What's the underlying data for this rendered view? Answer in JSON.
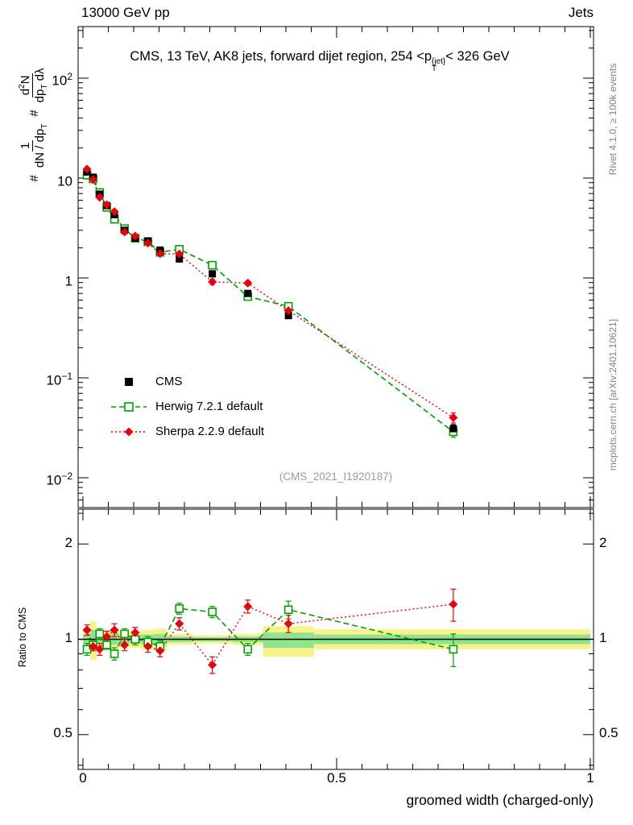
{
  "header": {
    "left": "13000 GeV pp",
    "right": "Jets"
  },
  "title": {
    "part1": "CMS, 13 TeV, AK8 jets, forward dijet region, 254 <p",
    "sup": "{jet}",
    "sub": "T",
    "part2": "< 326 GeV"
  },
  "ylabel": {
    "hash1": "#",
    "frac1": {
      "num": "1",
      "den_a": "dN / dp",
      "den_sub": "T"
    },
    "hash2": "#",
    "frac2": {
      "num_a": "d",
      "num_sup": "2",
      "num_b": "N",
      "den_a": "dp",
      "den_sub": "T",
      "den_b": " dλ"
    }
  },
  "right_labels": {
    "top": "Rivet 4.1.0, ≥ 100k events",
    "bottom": "mcplots.cern.ch [arXiv:2401.10621]"
  },
  "watermark": "(CMS_2021_I1920187)",
  "ratio_ylabel": "Ratio to CMS",
  "main_yticks": [
    {
      "base": "10",
      "exp": "2"
    },
    {
      "base": "10",
      "exp": ""
    },
    {
      "base": "1",
      "exp": ""
    },
    {
      "base": "10",
      "exp": "−1"
    },
    {
      "base": "10",
      "exp": "−2"
    }
  ],
  "ratio_yticks": [
    "2",
    "1",
    "0.5"
  ],
  "xaxis": {
    "title": "groomed width (charged-only)",
    "ticks": [
      "0",
      "0.5",
      "1"
    ]
  },
  "legend": [
    {
      "label": "CMS"
    },
    {
      "label": "Herwig 7.2.1 default"
    },
    {
      "label": "Sherpa 2.2.9 default"
    }
  ],
  "colors": {
    "cms": "#000000",
    "herwig": "#00a000",
    "sherpa": "#e8000d",
    "band_yellow": "#f9f28a",
    "band_green": "#8ee58e",
    "gray_text": "#828282"
  },
  "chart_data": {
    "type": "line",
    "title": "CMS, 13 TeV, AK8 jets, forward dijet region, 254 <pT^{jet}< 326 GeV",
    "xlabel": "groomed width (charged-only)",
    "ylabel": "1/(dN/dpT) d2N/(dpT dlambda)",
    "ratio_ylabel": "Ratio to CMS",
    "xlim": [
      -0.01,
      1.01
    ],
    "ylog_main": true,
    "ylim_main": [
      0.005,
      300
    ],
    "ylog_ratio": true,
    "ylim_ratio": [
      0.39,
      2.6
    ],
    "x": [
      0.008,
      0.02,
      0.033,
      0.047,
      0.062,
      0.082,
      0.103,
      0.128,
      0.152,
      0.19,
      0.255,
      0.325,
      0.405,
      0.73
    ],
    "series": [
      {
        "name": "CMS",
        "marker": "filled-square",
        "y": [
          11.5,
          10.2,
          6.9,
          5.3,
          4.3,
          3.0,
          2.5,
          2.35,
          1.9,
          1.55,
          1.1,
          0.7,
          0.42,
          0.031
        ],
        "yerr_rel": [
          0.03,
          0.03,
          0.03,
          0.03,
          0.03,
          0.03,
          0.03,
          0.03,
          0.04,
          0.04,
          0.04,
          0.05,
          0.06,
          0.1
        ]
      },
      {
        "name": "Herwig 7.2.1 default",
        "marker": "open-square",
        "line": "dashed",
        "ratio_to_cms": [
          0.93,
          0.96,
          1.04,
          0.96,
          0.9,
          1.04,
          1.0,
          0.98,
          0.95,
          1.25,
          1.22,
          0.93,
          1.24,
          0.93
        ],
        "ratio_err": [
          0.04,
          0.03,
          0.04,
          0.03,
          0.04,
          0.04,
          0.04,
          0.04,
          0.04,
          0.05,
          0.05,
          0.04,
          0.08,
          0.11
        ]
      },
      {
        "name": "Sherpa 2.2.9 default",
        "marker": "filled-diamond",
        "line": "dotted",
        "ratio_to_cms": [
          1.07,
          0.95,
          0.93,
          1.02,
          1.07,
          0.96,
          1.05,
          0.95,
          0.92,
          1.12,
          0.83,
          1.27,
          1.12,
          1.29
        ],
        "ratio_err": [
          0.04,
          0.03,
          0.04,
          0.04,
          0.05,
          0.04,
          0.04,
          0.04,
          0.04,
          0.05,
          0.05,
          0.06,
          0.07,
          0.15
        ]
      }
    ],
    "uncertainty_bands": {
      "bin_edges": [
        0.0,
        0.014,
        0.027,
        0.04,
        0.054,
        0.071,
        0.092,
        0.114,
        0.14,
        0.165,
        0.215,
        0.295,
        0.355,
        0.455,
        1.0
      ],
      "yellow": [
        [
          0.93,
          1.07
        ],
        [
          0.86,
          1.14
        ],
        [
          0.94,
          1.06
        ],
        [
          0.93,
          1.07
        ],
        [
          0.92,
          1.08
        ],
        [
          0.94,
          1.06
        ],
        [
          0.94,
          1.06
        ],
        [
          0.93,
          1.07
        ],
        [
          0.92,
          1.08
        ],
        [
          0.96,
          1.04
        ],
        [
          0.97,
          1.03
        ],
        [
          0.96,
          1.04
        ],
        [
          0.88,
          1.1
        ],
        [
          0.93,
          1.075
        ]
      ],
      "green": [
        [
          0.965,
          1.035
        ],
        [
          0.93,
          1.07
        ],
        [
          0.97,
          1.03
        ],
        [
          0.965,
          1.035
        ],
        [
          0.96,
          1.04
        ],
        [
          0.97,
          1.03
        ],
        [
          0.97,
          1.03
        ],
        [
          0.965,
          1.035
        ],
        [
          0.96,
          1.04
        ],
        [
          0.98,
          1.02
        ],
        [
          0.985,
          1.015
        ],
        [
          0.98,
          1.02
        ],
        [
          0.94,
          1.05
        ],
        [
          0.965,
          1.035
        ]
      ]
    }
  }
}
